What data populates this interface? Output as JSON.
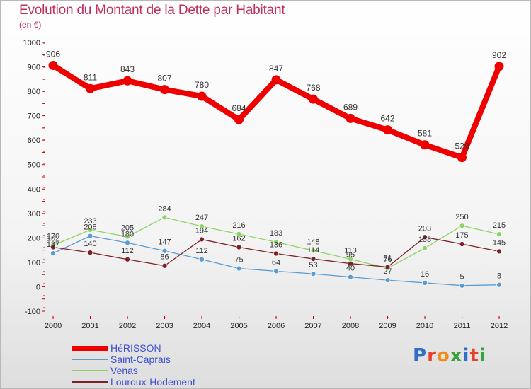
{
  "title": "Evolution du Montant de la Dette par Habitant",
  "subtitle": "(en €)",
  "logo": {
    "text": "Proxiti",
    "letter_colors": [
      "#2f6fc9",
      "#e8402a",
      "#f08c1a",
      "#3aa040",
      "#2f6fc9",
      "#e8402a",
      "#3aa040"
    ]
  },
  "chart_data": {
    "type": "line",
    "title": "Evolution du Montant de la Dette par Habitant",
    "subtitle": "(en €)",
    "x": [
      "2000",
      "2001",
      "2002",
      "2003",
      "2004",
      "2005",
      "2006",
      "2007",
      "2008",
      "2009",
      "2010",
      "2011",
      "2012"
    ],
    "ylim": [
      -100,
      1000
    ],
    "yticks": [
      -100,
      0,
      100,
      200,
      300,
      400,
      500,
      600,
      700,
      800,
      900,
      1000
    ],
    "grid": false,
    "legend_position": "bottom-left",
    "series": [
      {
        "name": "HéRISSON",
        "color": "#ee0000",
        "values": [
          906,
          811,
          843,
          807,
          780,
          684,
          847,
          768,
          689,
          642,
          581,
          529,
          902
        ]
      },
      {
        "name": "Saint-Caprais",
        "color": "#5b9bd0",
        "values": [
          137,
          208,
          180,
          147,
          112,
          75,
          64,
          53,
          40,
          27,
          16,
          5,
          8
        ]
      },
      {
        "name": "Venas",
        "color": "#8ed465",
        "values": [
          170,
          233,
          205,
          284,
          247,
          216,
          183,
          148,
          113,
          76,
          158,
          250,
          215
        ]
      },
      {
        "name": "Louroux-Hodement",
        "color": "#7a2228",
        "values": [
          162,
          140,
          112,
          86,
          194,
          162,
          136,
          114,
          95,
          81,
          203,
          175,
          145
        ]
      }
    ]
  }
}
